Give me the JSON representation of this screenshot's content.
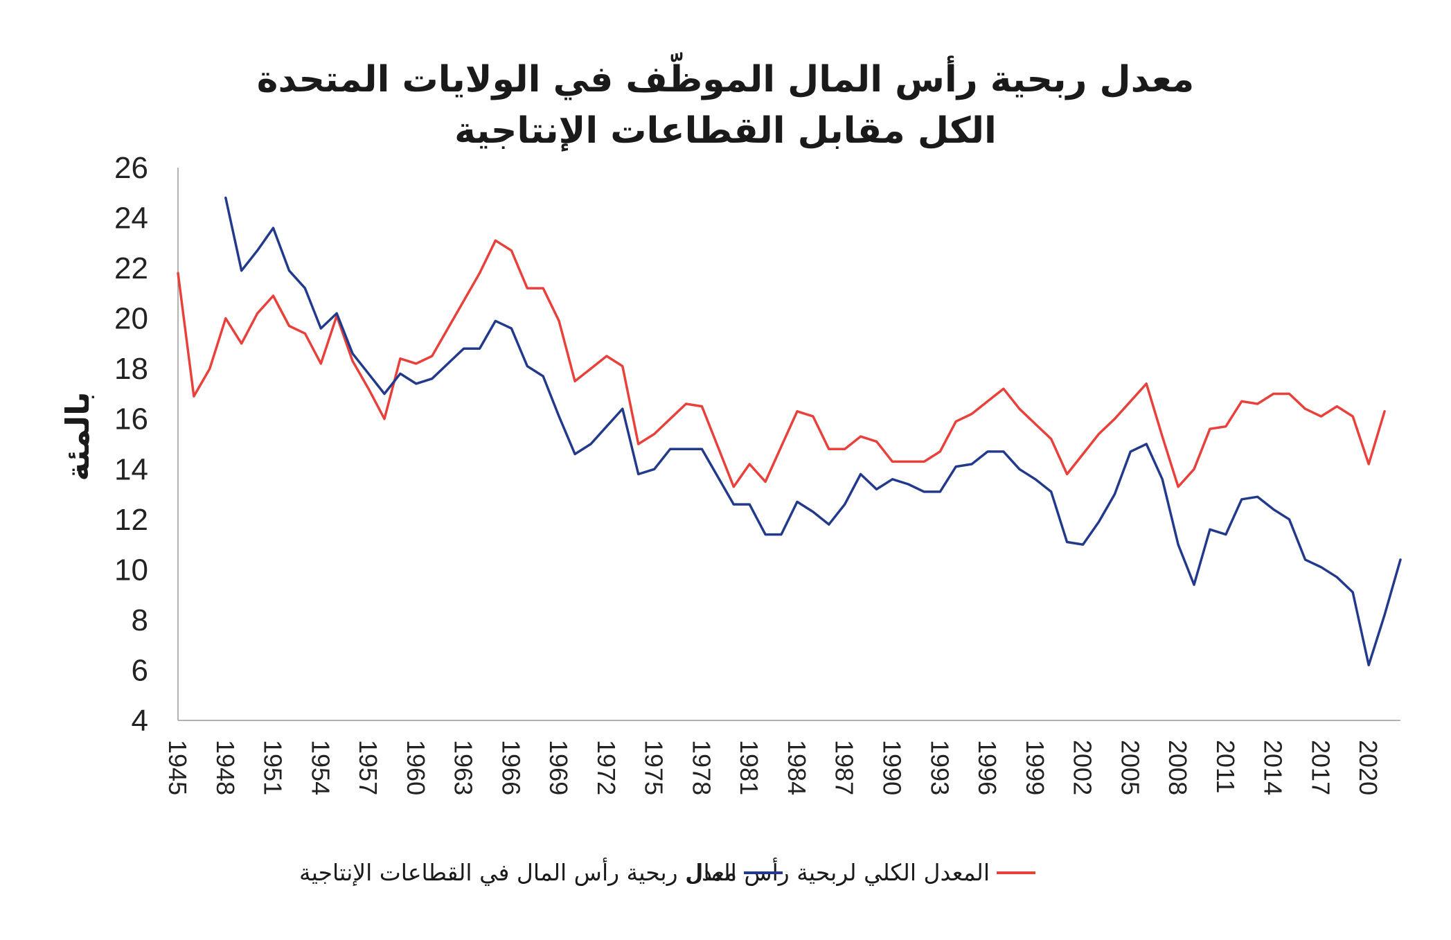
{
  "chart_data": {
    "type": "line",
    "title": "معدل ربحية رأس المال الموظّف في الولايات المتحدة",
    "subtitle": "الكل مقابل القطاعات الإنتاجية",
    "xlabel": "",
    "ylabel": "بالمئة",
    "ylim": [
      4,
      26
    ],
    "yticks": [
      4,
      6,
      8,
      10,
      12,
      14,
      16,
      18,
      20,
      22,
      24,
      26
    ],
    "xlim": [
      1945,
      2022
    ],
    "xticks": [
      1945,
      1948,
      1951,
      1954,
      1957,
      1960,
      1963,
      1966,
      1969,
      1972,
      1975,
      1978,
      1981,
      1984,
      1987,
      1990,
      1993,
      1996,
      1999,
      2002,
      2005,
      2008,
      2011,
      2014,
      2017,
      2020
    ],
    "grid": false,
    "legend_position": "bottom",
    "x": [
      1945,
      1946,
      1947,
      1948,
      1949,
      1950,
      1951,
      1952,
      1953,
      1954,
      1955,
      1956,
      1957,
      1958,
      1959,
      1960,
      1961,
      1962,
      1963,
      1964,
      1965,
      1966,
      1967,
      1968,
      1969,
      1970,
      1971,
      1972,
      1973,
      1974,
      1975,
      1976,
      1977,
      1978,
      1979,
      1980,
      1981,
      1982,
      1983,
      1984,
      1985,
      1986,
      1987,
      1988,
      1989,
      1990,
      1991,
      1992,
      1993,
      1994,
      1995,
      1996,
      1997,
      1998,
      1999,
      2000,
      2001,
      2002,
      2003,
      2004,
      2005,
      2006,
      2007,
      2008,
      2009,
      2010,
      2011,
      2012,
      2013,
      2014,
      2015,
      2016,
      2017,
      2018,
      2019,
      2020,
      2021,
      2022
    ],
    "series": [
      {
        "name": "المعدل الكلي لربحية رأس المال",
        "color": "#e8403a",
        "values": [
          21.8,
          16.9,
          18.0,
          20.0,
          19.0,
          20.2,
          20.9,
          19.7,
          19.4,
          18.2,
          20.1,
          18.3,
          17.2,
          16.0,
          18.4,
          18.2,
          18.5,
          19.6,
          20.7,
          21.8,
          23.1,
          22.7,
          21.2,
          21.2,
          19.9,
          17.5,
          18.0,
          18.5,
          18.1,
          15.0,
          15.4,
          16.0,
          16.6,
          16.5,
          14.9,
          13.3,
          14.2,
          13.5,
          14.9,
          16.3,
          16.1,
          14.8,
          14.8,
          15.3,
          15.1,
          14.3,
          14.3,
          14.3,
          14.7,
          15.9,
          16.2,
          16.7,
          17.2,
          16.4,
          15.8,
          15.2,
          13.8,
          14.6,
          15.4,
          16.0,
          16.7,
          17.4,
          15.3,
          13.3,
          14.0,
          15.6,
          15.7,
          16.7,
          16.6,
          17.0,
          17.0,
          16.4,
          16.1,
          16.5,
          16.1,
          14.2,
          16.3,
          null
        ]
      },
      {
        "name": "معدل ربحية رأس المال في القطاعات الإنتاجية",
        "color": "#233a8c",
        "values": [
          null,
          null,
          null,
          24.8,
          21.9,
          22.7,
          23.6,
          21.9,
          21.2,
          19.6,
          20.2,
          18.6,
          17.8,
          17.0,
          17.8,
          17.4,
          17.6,
          18.2,
          18.8,
          18.8,
          19.9,
          19.6,
          18.1,
          17.7,
          16.1,
          14.6,
          15.0,
          15.7,
          16.4,
          13.8,
          14.0,
          14.8,
          14.8,
          14.8,
          13.7,
          12.6,
          12.6,
          11.4,
          11.4,
          12.7,
          12.3,
          11.8,
          12.6,
          13.8,
          13.2,
          13.6,
          13.4,
          13.1,
          13.1,
          14.1,
          14.2,
          14.7,
          14.7,
          14.0,
          13.6,
          13.1,
          11.1,
          11.0,
          11.9,
          13.0,
          14.7,
          15.0,
          13.6,
          11.0,
          9.4,
          11.6,
          11.4,
          12.8,
          12.9,
          12.4,
          12.0,
          10.4,
          10.1,
          9.7,
          9.1,
          6.2,
          8.2,
          10.4
        ]
      }
    ]
  }
}
